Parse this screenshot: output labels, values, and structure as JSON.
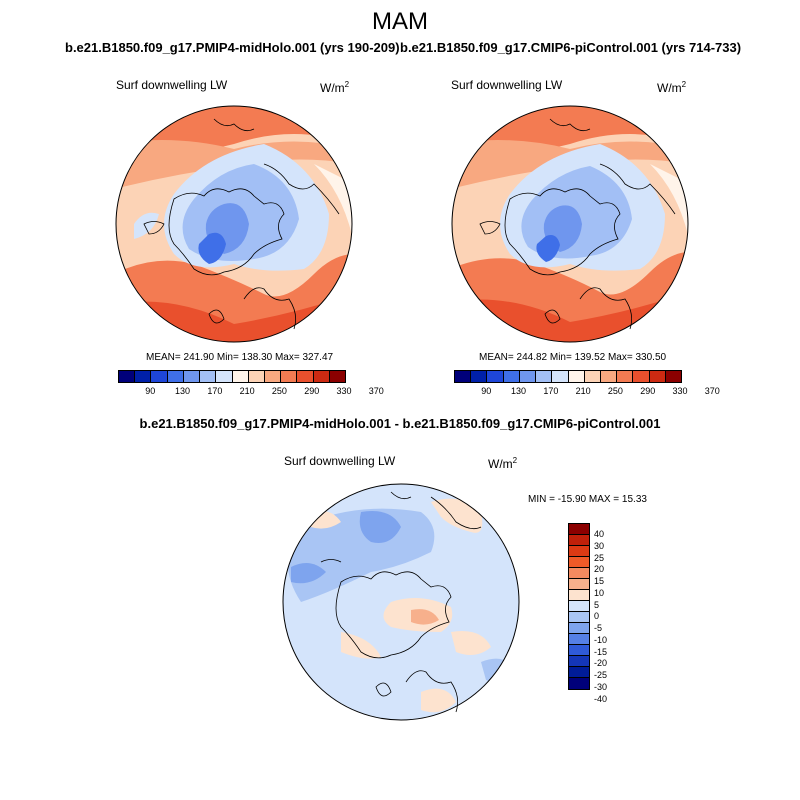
{
  "figure": {
    "title": "MAM",
    "variable_label": "Surf downwelling LW",
    "units_base": "W/m",
    "units_exp": "2"
  },
  "panels": [
    {
      "title": "b.e21.B1850.f09_g17.PMIP4-midHolo.001 (yrs 190-209)",
      "stats": "MEAN= 241.90   Min= 138.30   Max= 327.47"
    },
    {
      "title": "b.e21.B1850.f09_g17.CMIP6-piControl.001 (yrs 714-733)",
      "stats": "MEAN= 244.82   Min= 139.52   Max= 330.50"
    }
  ],
  "difference_panel": {
    "title": "b.e21.B1850.f09_g17.PMIP4-midHolo.001 - b.e21.B1850.f09_g17.CMIP6-piControl.001",
    "units_base": "W/m",
    "units_exp": "2",
    "stats": "MIN = -15.90 MAX =  15.33"
  },
  "colorbar_abs": {
    "colors": [
      "#00007a",
      "#0020a8",
      "#1e46d8",
      "#3f6fe8",
      "#6f96ee",
      "#a2bff5",
      "#d4e4fb",
      "#fff4ea",
      "#fcd3b6",
      "#f8a880",
      "#f37b52",
      "#e9502d",
      "#cc2a12",
      "#8b0000"
    ],
    "tick_labels": [
      "90",
      "130",
      "170",
      "210",
      "250",
      "290",
      "330",
      "370"
    ]
  },
  "colorbar_diff": {
    "colors": [
      "#8b0000",
      "#c0200a",
      "#dd3a14",
      "#ef5a28",
      "#f48a60",
      "#f7b08c",
      "#fde3cf",
      "#d4e4fb",
      "#a9c5f4",
      "#7ea4ee",
      "#5580e6",
      "#2f5ad8",
      "#1436b8",
      "#001c98",
      "#00007a"
    ],
    "tick_labels": [
      "40",
      "30",
      "25",
      "20",
      "15",
      "10",
      "5",
      "0",
      "-5",
      "-10",
      "-15",
      "-20",
      "-25",
      "-30",
      "-40"
    ]
  }
}
